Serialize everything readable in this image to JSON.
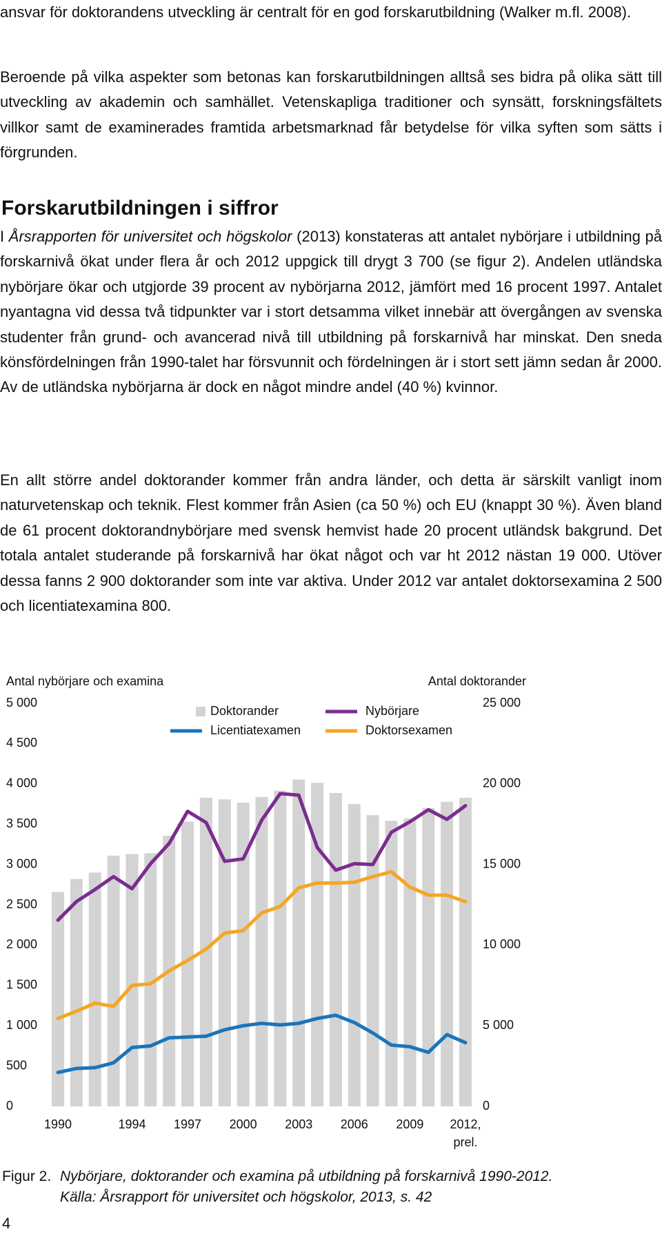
{
  "body": {
    "paragraph_1": "ansvar för doktorandens utveckling är centralt för en god forskarutbildning (Walker m.fl. 2008).",
    "paragraph_2": "Beroende på vilka aspekter som betonas kan forskarutbildningen alltså ses bidra på olika sätt till utveckling av akademin och samhället. Vetenskapliga traditioner och synsätt, forskningsfältets villkor samt de examinerades framtida arbetsmarknad får betydelse för vilka syften som sätts i förgrunden.",
    "heading": "Forskarutbildningen i siffror",
    "paragraph_3": {
      "lead": "I ",
      "title": "Årsrapporten för universitet och högskolor",
      "text": " (2013) konstateras att antalet nybörjare i utbildning på forskarnivå ökat under flera år och 2012 uppgick till drygt 3 700 (se figur 2). Andelen utländska nybörjare ökar och utgjorde 39 procent av nybörjarna 2012, jämfört med 16 procent 1997. Antalet nyantagna vid dessa två tidpunkter var i stort detsamma vilket innebär att övergången av svenska studenter från grund- och avancerad nivå till utbildning på forskarnivå har minskat. Den sneda könsfördelningen från 1990-talet har försvunnit och fördelningen är i stort sett jämn sedan år 2000. Av de utländska nybörjarna är dock en något mindre andel (40 %) kvinnor."
    },
    "paragraph_4": "En allt större andel doktorander kommer från andra länder, och detta är särskilt vanligt inom naturvetenskap och teknik. Flest kommer från Asien (ca 50 %) och EU (knappt 30 %). Även bland de 61 procent doktorandnybörjare med svensk hemvist hade 20 procent utländsk bakgrund. Det totala antalet studerande på forskarnivå har ökat något och var ht 2012 nästan 19 000. Utöver dessa fanns 2 900 doktorander som inte var aktiva. Under 2012 var antalet doktorsexamina 2 500 och licentiatexamina 800."
  },
  "chart_data": {
    "type": "bar",
    "y_label": "Antal nybörjare och examina",
    "y2_label": "Antal doktorander",
    "x": [
      1990,
      1991,
      1992,
      1993,
      1994,
      1995,
      1996,
      1997,
      1998,
      1999,
      2000,
      2001,
      2002,
      2003,
      2004,
      2005,
      2006,
      2007,
      2008,
      2009,
      2010,
      2011,
      2012
    ],
    "xlim": [
      1989.5,
      2012.5
    ],
    "xticks": [
      1990,
      1994,
      1997,
      2000,
      2003,
      2006,
      2009,
      {
        "value": 2012,
        "label": "2012, prel."
      }
    ],
    "ylim": [
      0,
      5000
    ],
    "yticks": [
      0,
      500,
      {
        "value": 1000,
        "label": "1 000"
      },
      {
        "value": 1500,
        "label": "1 500"
      },
      {
        "value": 2000,
        "label": "2 000"
      },
      {
        "value": 2500,
        "label": "2 500"
      },
      {
        "value": 3000,
        "label": "3 000"
      },
      {
        "value": 3500,
        "label": "3 500"
      },
      {
        "value": 4000,
        "label": "4 000"
      },
      {
        "value": 4500,
        "label": "4 500"
      },
      {
        "value": 5000,
        "label": "5 000"
      }
    ],
    "y2lim": [
      0,
      25000
    ],
    "y2ticks": [
      0,
      {
        "value": 5000,
        "label": "5 000"
      },
      {
        "value": 10000,
        "label": "10 000"
      },
      {
        "value": 15000,
        "label": "15 000"
      },
      {
        "value": 20000,
        "label": "20 000"
      },
      {
        "value": 25000,
        "label": "25 000"
      }
    ],
    "series": [
      {
        "name": "Doktorander",
        "type": "bar",
        "axis": "y2",
        "color": "#d3d3d3",
        "values": [
          13300,
          14100,
          14500,
          15550,
          15650,
          15700,
          16780,
          17660,
          19140,
          19040,
          18840,
          19190,
          19580,
          20270,
          20070,
          19430,
          18750,
          18060,
          17710,
          17860,
          18500,
          18890,
          19140
        ]
      },
      {
        "name": "Nybörjare",
        "type": "line",
        "color": "#7b2d8e",
        "values": [
          2310,
          2540,
          2690,
          2850,
          2700,
          3010,
          3260,
          3660,
          3520,
          3040,
          3070,
          3550,
          3880,
          3860,
          3210,
          2930,
          3010,
          3000,
          3400,
          3530,
          3680,
          3560,
          3730
        ]
      },
      {
        "name": "Licentiatexamen",
        "type": "line",
        "color": "#1a75bb",
        "values": [
          420,
          470,
          480,
          540,
          730,
          750,
          850,
          860,
          870,
          950,
          1000,
          1030,
          1010,
          1030,
          1090,
          1130,
          1040,
          910,
          760,
          740,
          670,
          890,
          790
        ]
      },
      {
        "name": "Doktorsexamen",
        "type": "line",
        "color": "#f5a623",
        "values": [
          1090,
          1180,
          1280,
          1240,
          1500,
          1520,
          1680,
          1810,
          1950,
          2150,
          2180,
          2400,
          2480,
          2710,
          2770,
          2770,
          2780,
          2850,
          2910,
          2720,
          2620,
          2620,
          2540
        ]
      }
    ]
  },
  "caption": {
    "label": "Figur 2.",
    "title": "Nybörjare, doktorander och examina på utbildning på forskarnivå 1990-2012.",
    "source": "Källa: Årsrapport för universitet och högskolor, 2013, s. 42"
  },
  "page_number": "4"
}
